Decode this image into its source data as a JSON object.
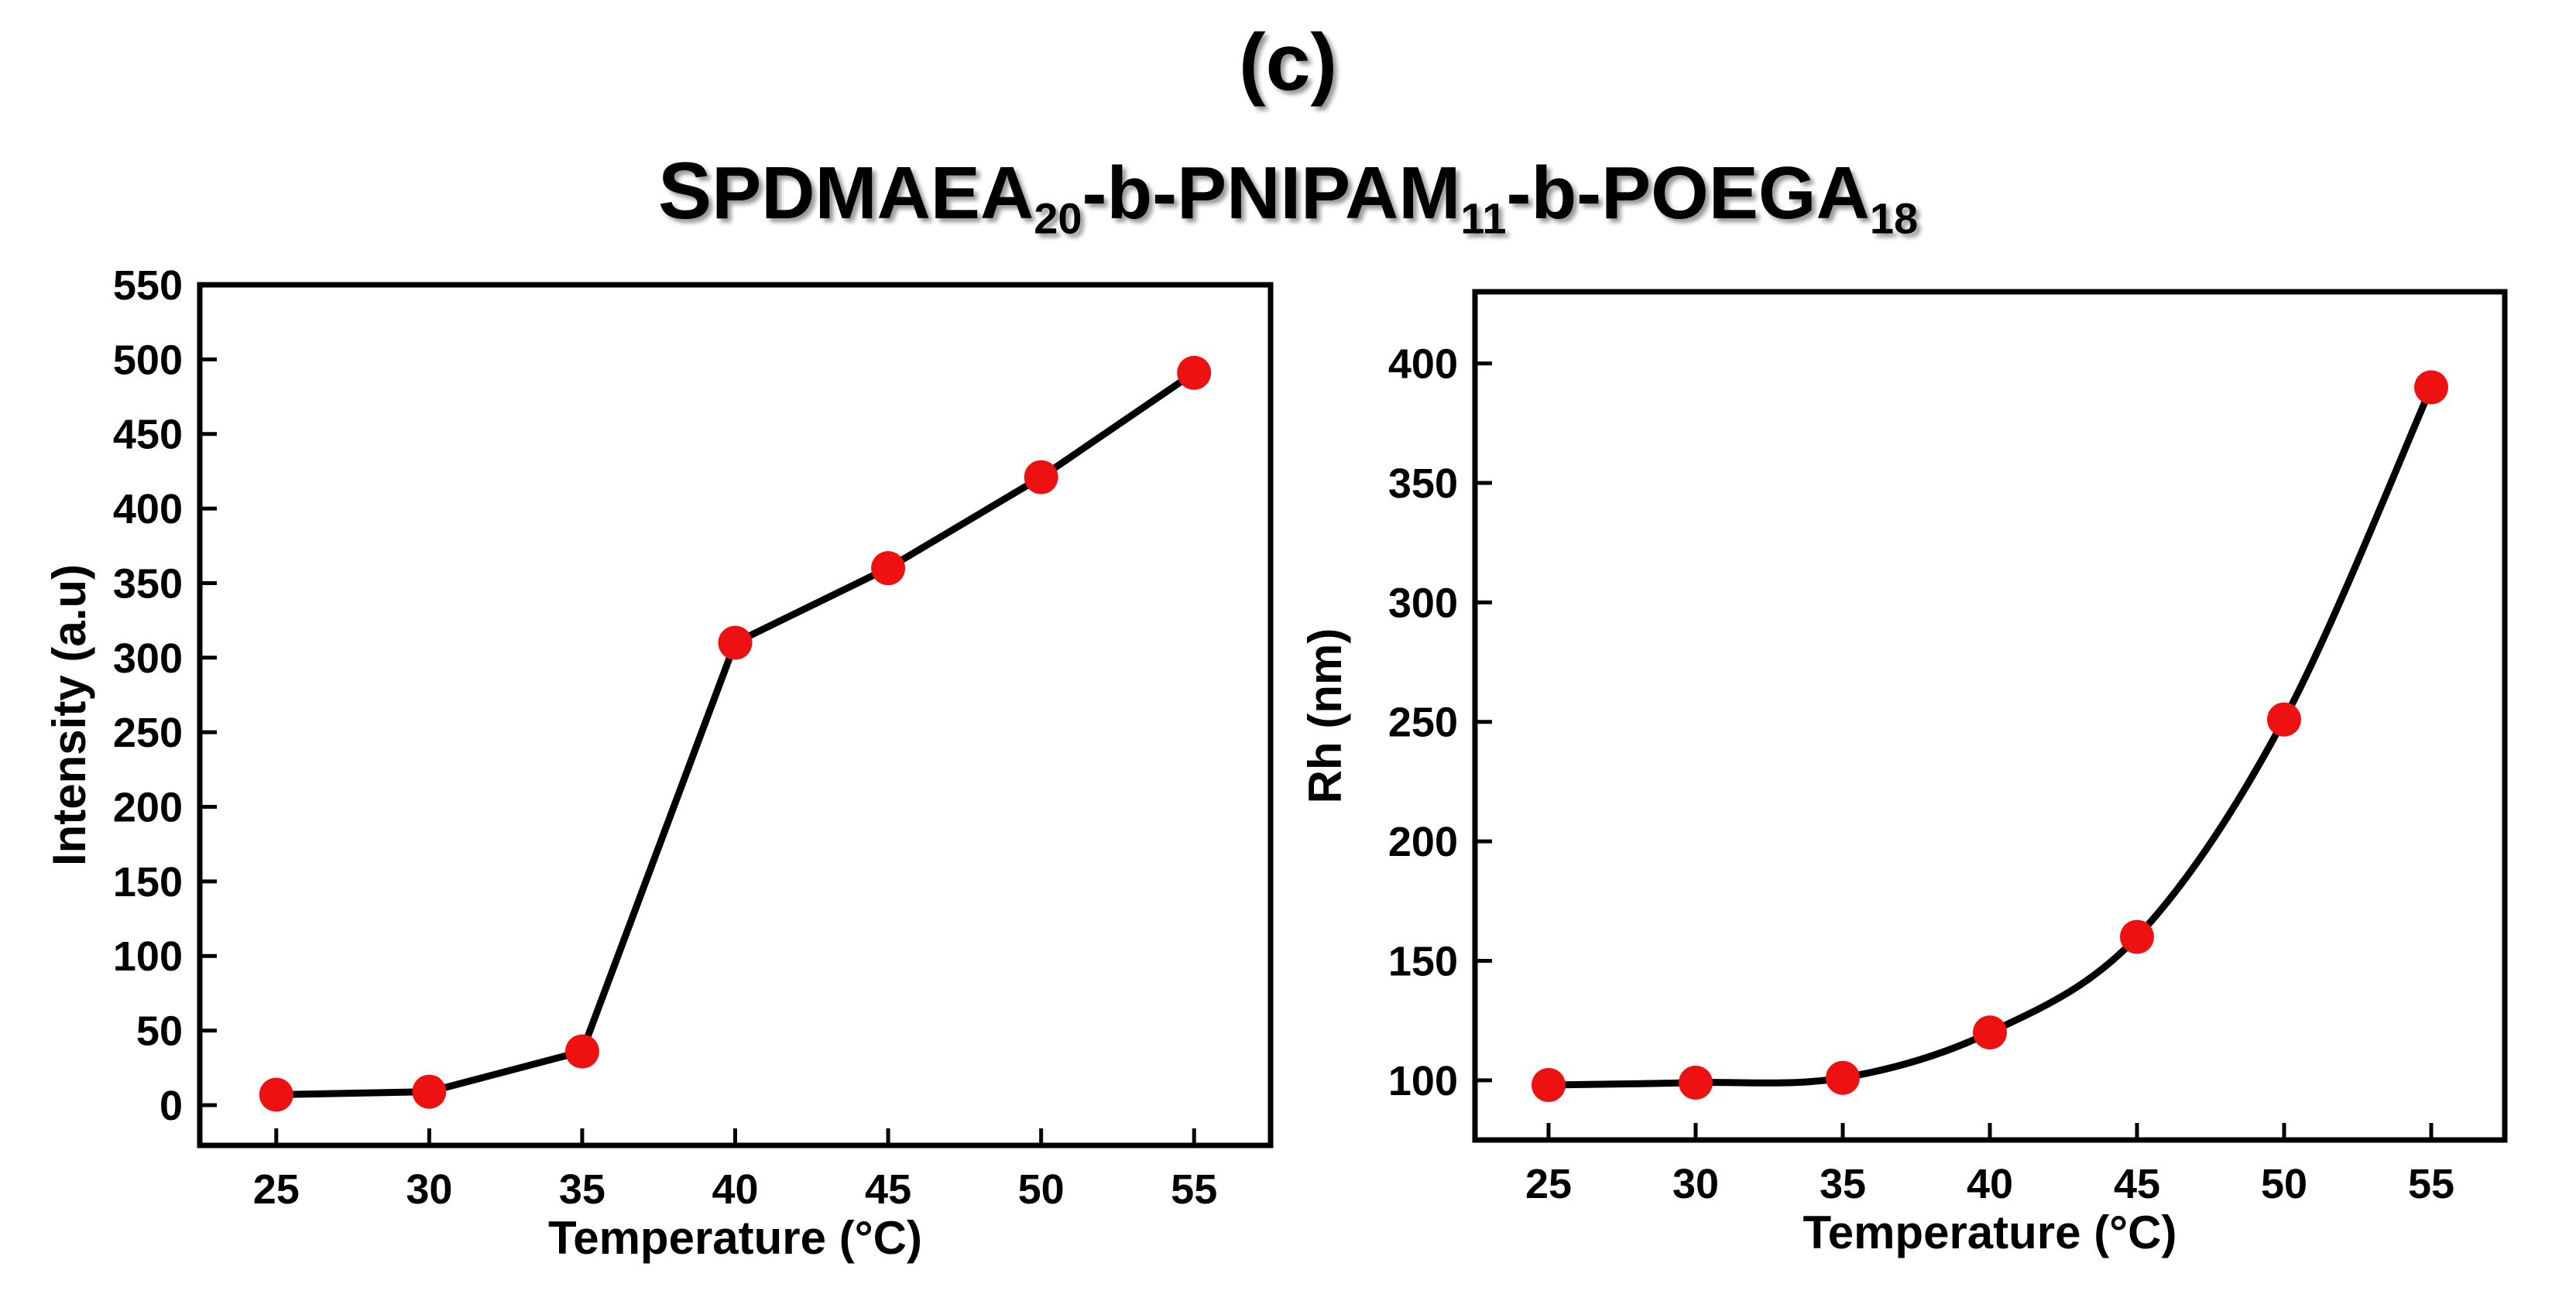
{
  "figure": {
    "panel_label": "(c)",
    "title_parts": [
      {
        "text": "S",
        "big": true
      },
      {
        "text": "PDMAEA"
      },
      {
        "text": "20",
        "sub": true
      },
      {
        "text": "-b-PNIPAM"
      },
      {
        "text": "11",
        "sub": true
      },
      {
        "text": "-b-POEGA"
      },
      {
        "text": "18",
        "sub": true
      }
    ]
  },
  "chart_data": [
    {
      "type": "line",
      "title": "",
      "xlabel": "Temperature (°C)",
      "ylabel": "Intensity (a.u)",
      "x": [
        25,
        30,
        35,
        40,
        45,
        50,
        55
      ],
      "y": [
        7,
        9,
        36,
        310,
        360,
        421,
        491
      ],
      "xlim": [
        22.5,
        57.5
      ],
      "ylim": [
        -27,
        550
      ],
      "xticks": [
        25,
        30,
        35,
        40,
        45,
        50,
        55
      ],
      "yticks": [
        0,
        50,
        100,
        150,
        200,
        250,
        300,
        350,
        400,
        450,
        500,
        550
      ],
      "line_color": "#000000",
      "marker_color": "#ee1111"
    },
    {
      "type": "line",
      "title": "",
      "xlabel": "Temperature (°C)",
      "ylabel": "Rh (nm)",
      "x": [
        25,
        30,
        35,
        40,
        45,
        50,
        55
      ],
      "y": [
        98,
        99,
        101,
        120,
        160,
        251,
        390
      ],
      "xlim": [
        22.5,
        57.5
      ],
      "ylim": [
        75,
        430
      ],
      "xticks": [
        25,
        30,
        35,
        40,
        45,
        50,
        55
      ],
      "yticks": [
        100,
        150,
        200,
        250,
        300,
        350,
        400
      ],
      "line_color": "#000000",
      "marker_color": "#ee1111"
    }
  ]
}
